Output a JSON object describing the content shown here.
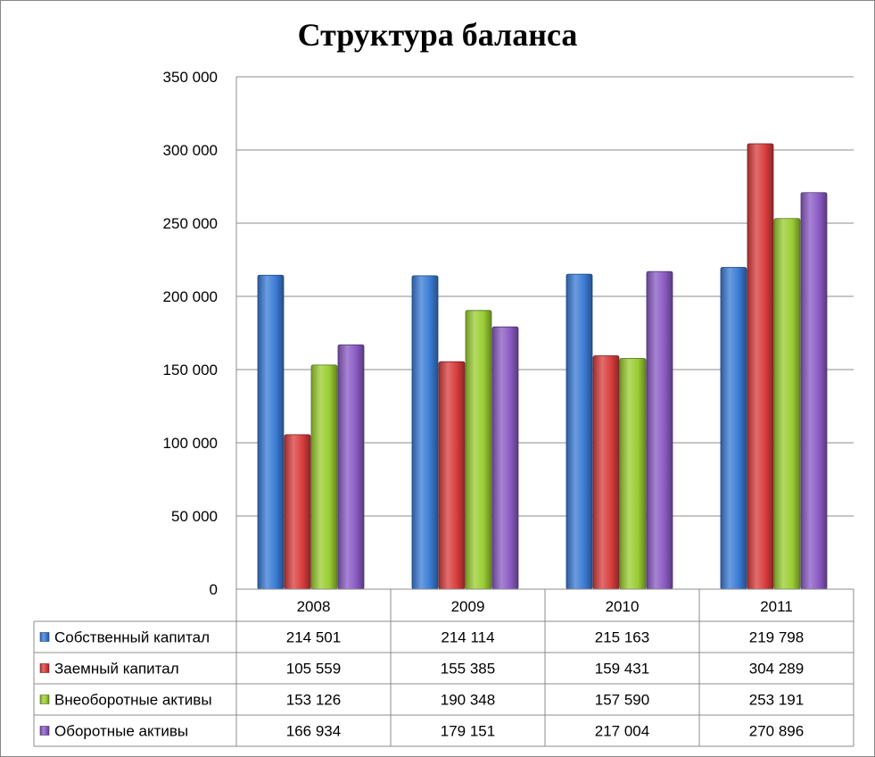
{
  "chart_data": {
    "type": "bar",
    "title": "Структура баланса",
    "categories": [
      "2008",
      "2009",
      "2010",
      "2011"
    ],
    "ylim": [
      0,
      350000
    ],
    "yticks": [
      "0",
      "50 000",
      "100 000",
      "150 000",
      "200 000",
      "250 000",
      "300 000",
      "350 000"
    ],
    "ytick_values": [
      0,
      50000,
      100000,
      150000,
      200000,
      250000,
      300000,
      350000
    ],
    "grid": true,
    "legend": "data-table",
    "series": [
      {
        "name": "Собственный капитал",
        "color": "#3a7bd5",
        "values": [
          214501,
          214114,
          215163,
          219798
        ],
        "labels": [
          "214 501",
          "214 114",
          "215 163",
          "219 798"
        ]
      },
      {
        "name": "Заемный капитал",
        "color": "#d83c3c",
        "values": [
          105559,
          155385,
          159431,
          304289
        ],
        "labels": [
          "105 559",
          "155 385",
          "159 431",
          "304 289"
        ]
      },
      {
        "name": "Внеоборотные активы",
        "color": "#9acd32",
        "values": [
          153126,
          190348,
          157590,
          253191
        ],
        "labels": [
          "153 126",
          "190 348",
          "157 590",
          "253 191"
        ]
      },
      {
        "name": "Оборотные активы",
        "color": "#8a5bc4",
        "values": [
          166934,
          179151,
          217004,
          270896
        ],
        "labels": [
          "166 934",
          "179 151",
          "217 004",
          "270 896"
        ]
      }
    ]
  }
}
